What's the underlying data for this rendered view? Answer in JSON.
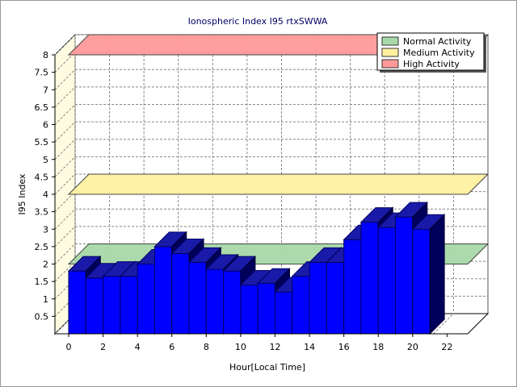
{
  "chart_data": {
    "type": "bar",
    "title": "Ionospheric Index I95 rtxSWWA",
    "xlabel": "Hour[Local Time]",
    "ylabel": "I95 Index",
    "ylim": [
      0,
      8
    ],
    "yticks": [
      "0.5",
      "1",
      "1.5",
      "2",
      "2.5",
      "3",
      "3.5",
      "4",
      "4.5",
      "5",
      "5.5",
      "6",
      "6.5",
      "7",
      "7.5",
      "8"
    ],
    "xticks": [
      "0",
      "2",
      "4",
      "6",
      "8",
      "10",
      "12",
      "14",
      "16",
      "18",
      "20",
      "22"
    ],
    "xlim": [
      0,
      24
    ],
    "grid": true,
    "legend_position": "top-right",
    "bar_color": "#0000ff",
    "x": [
      0,
      1,
      2,
      3,
      4,
      5,
      6,
      7,
      8,
      9,
      10,
      11,
      12,
      13,
      14,
      15,
      16,
      17,
      18,
      19,
      20
    ],
    "values": [
      1.8,
      1.6,
      1.65,
      1.65,
      2.0,
      2.5,
      2.3,
      2.05,
      1.85,
      1.8,
      1.4,
      1.45,
      1.2,
      1.65,
      2.05,
      2.05,
      2.7,
      3.2,
      3.05,
      3.35,
      3.0
    ],
    "bands": [
      {
        "name": "Normal Activity",
        "value": 2.0,
        "color": "#a8d8a8"
      },
      {
        "name": "Medium Activity",
        "value": 4.0,
        "color": "#fff0a0"
      },
      {
        "name": "High Activity",
        "value": 8.0,
        "color": "#ff9999"
      }
    ]
  }
}
